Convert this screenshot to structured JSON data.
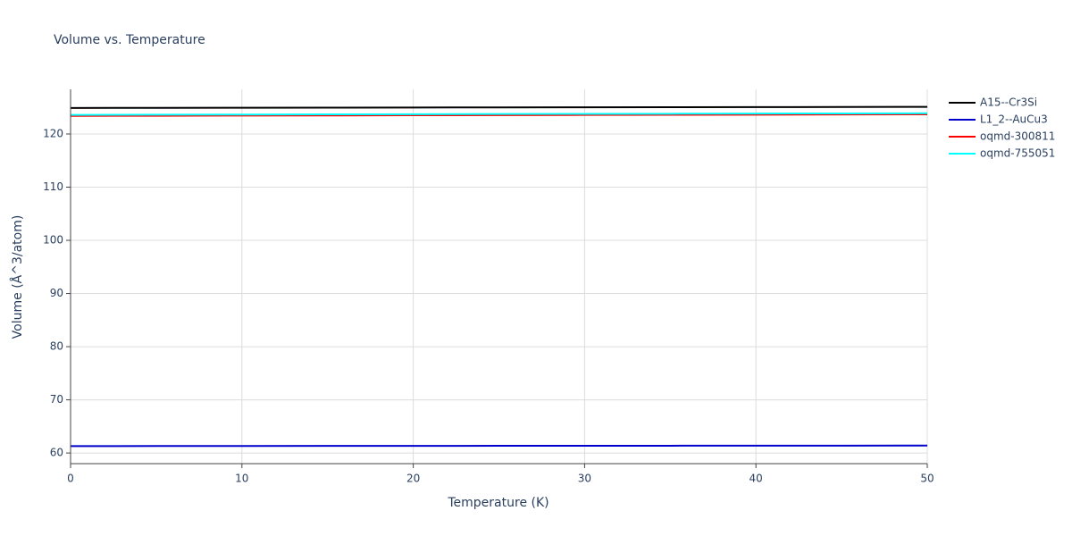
{
  "chart_data": {
    "type": "line",
    "title": "Volume vs. Temperature",
    "x_label": "Temperature (K)",
    "y_label": "Volume (Å^3/atom)",
    "x": [
      0,
      5,
      10,
      15,
      20,
      25,
      30,
      35,
      40,
      45,
      50
    ],
    "series": [
      {
        "name": "A15--Cr3Si",
        "color": "#000000",
        "values": [
          124.9,
          124.92,
          124.94,
          124.96,
          124.98,
          125.0,
          125.02,
          125.04,
          125.06,
          125.08,
          125.1
        ]
      },
      {
        "name": "L1_2--AuCu3",
        "color": "#0000cc",
        "values": [
          61.3,
          61.31,
          61.32,
          61.33,
          61.34,
          61.35,
          61.36,
          61.37,
          61.38,
          61.39,
          61.4
        ]
      },
      {
        "name": "oqmd-300811",
        "color": "#ff0000",
        "values": [
          123.4,
          123.43,
          123.46,
          123.49,
          123.52,
          123.55,
          123.58,
          123.61,
          123.64,
          123.67,
          123.7
        ]
      },
      {
        "name": "oqmd-755051",
        "color": "#00ffff",
        "values": [
          123.6,
          123.63,
          123.66,
          123.69,
          123.72,
          123.75,
          123.78,
          123.81,
          123.84,
          123.87,
          123.9
        ]
      }
    ],
    "xlim": [
      0,
      50
    ],
    "xticks": [
      0,
      10,
      20,
      30,
      40,
      50
    ],
    "ylim": [
      58,
      128.4
    ],
    "yticks": [
      60,
      70,
      80,
      90,
      100,
      110,
      120
    ],
    "grid": true,
    "legend": "right"
  }
}
